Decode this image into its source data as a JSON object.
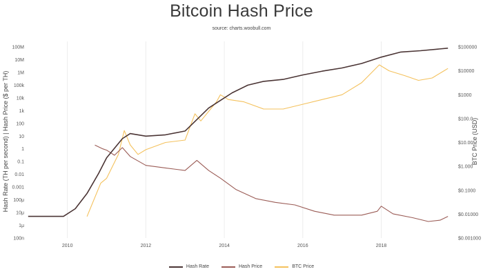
{
  "chart_data": {
    "type": "line",
    "title": "Bitcoin Hash Price",
    "subtitle": "source: charts.woobull.com",
    "ylabel_left": "Hash Rate (TH per second) | Hash Price ($ per TH)",
    "ylabel_right": "BTC Price (USD)",
    "x_ticks": [
      "2010",
      "2012",
      "2014",
      "2016",
      "2018"
    ],
    "x_range": [
      2008.95,
      2019.75
    ],
    "left_ticks": [
      "100M",
      "10M",
      "1M",
      "100k",
      "10k",
      "1k",
      "100",
      "10",
      "1",
      "0.1",
      "0.01",
      "0.001",
      "100μ",
      "10μ",
      "1μ",
      "100n"
    ],
    "left_range_log10": [
      -7,
      8
    ],
    "right_ticks": [
      "$100000",
      "$10000",
      "$1000",
      "$100.0",
      "$10.00",
      "$1.000",
      "$0.1000",
      "$0.01000",
      "$0.001000"
    ],
    "right_range_log10": [
      -3,
      5
    ],
    "grid": "vertical",
    "legend_position": "bottom",
    "series": [
      {
        "name": "Hash Rate",
        "color": "#4a3434",
        "axis": "left",
        "x": [
          2009.0,
          2009.5,
          2009.9,
          2010.2,
          2010.5,
          2010.8,
          2011.0,
          2011.4,
          2011.6,
          2012.0,
          2012.5,
          2013.0,
          2013.3,
          2013.6,
          2013.9,
          2014.2,
          2014.6,
          2015.0,
          2015.5,
          2016.0,
          2016.5,
          2017.0,
          2017.5,
          2018.0,
          2018.5,
          2019.0,
          2019.7
        ],
        "values": [
          -5.3,
          -5.3,
          -5.3,
          -4.7,
          -3.5,
          -1.9,
          -0.7,
          0.8,
          1.2,
          1.0,
          1.1,
          1.4,
          2.3,
          3.2,
          3.8,
          4.4,
          5.0,
          5.3,
          5.45,
          5.8,
          6.1,
          6.35,
          6.7,
          7.2,
          7.6,
          7.7,
          7.9
        ]
      },
      {
        "name": "Hash Price",
        "color": "#9a5b55",
        "axis": "left",
        "x": [
          2010.7,
          2010.9,
          2011.0,
          2011.2,
          2011.4,
          2011.6,
          2012.0,
          2012.5,
          2013.0,
          2013.3,
          2013.6,
          2013.9,
          2014.3,
          2014.8,
          2015.3,
          2015.8,
          2016.3,
          2016.8,
          2017.5,
          2017.9,
          2018.0,
          2018.3,
          2018.8,
          2019.2,
          2019.5,
          2019.7
        ],
        "values": [
          0.3,
          0.0,
          -0.1,
          -0.5,
          0.1,
          -0.6,
          -1.3,
          -1.5,
          -1.7,
          -0.9,
          -1.7,
          -2.3,
          -3.2,
          -3.9,
          -4.2,
          -4.4,
          -4.9,
          -5.2,
          -5.2,
          -4.9,
          -4.5,
          -5.1,
          -5.4,
          -5.7,
          -5.6,
          -5.3
        ]
      },
      {
        "name": "BTC Price",
        "color": "#f4c15c",
        "axis": "right",
        "x": [
          2010.5,
          2010.7,
          2010.85,
          2011.0,
          2011.3,
          2011.45,
          2011.6,
          2011.8,
          2012.0,
          2012.5,
          2013.0,
          2013.25,
          2013.4,
          2013.8,
          2013.9,
          2014.1,
          2014.5,
          2015.0,
          2015.5,
          2016.0,
          2016.5,
          2017.0,
          2017.5,
          2017.95,
          2018.2,
          2018.6,
          2018.95,
          2019.3,
          2019.6,
          2019.7
        ],
        "values": [
          -2.1,
          -1.3,
          -0.7,
          -0.5,
          0.5,
          1.5,
          0.9,
          0.5,
          0.7,
          1.0,
          1.1,
          2.2,
          1.9,
          2.7,
          3.0,
          2.8,
          2.7,
          2.4,
          2.4,
          2.6,
          2.8,
          3.0,
          3.5,
          4.25,
          4.0,
          3.8,
          3.6,
          3.7,
          4.0,
          4.1
        ]
      }
    ]
  }
}
